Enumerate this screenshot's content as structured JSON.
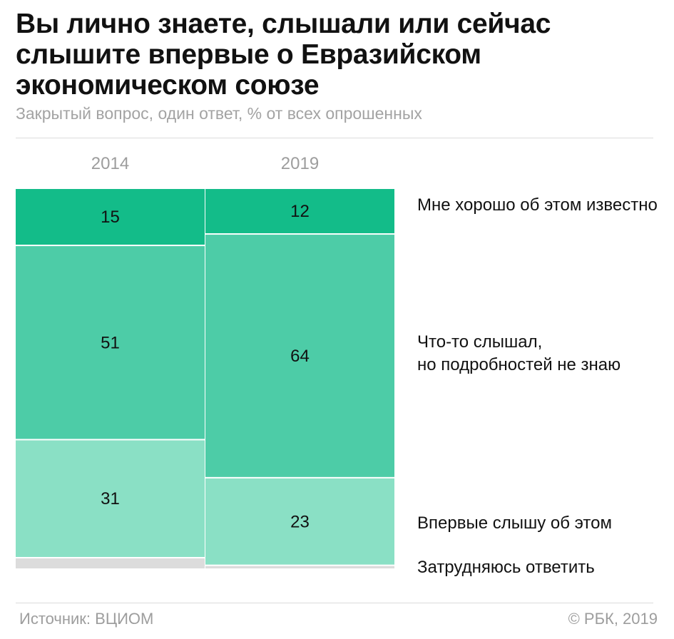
{
  "title": "Вы лично знаете, слышали или сейчас слышите впервые о Евразийском экономическом союзе",
  "subtitle": "Закрытый вопрос, один ответ, % от всех опрошенных",
  "source": "Источник: ВЦИОМ",
  "copyright": "© РБК, 2019",
  "colors": {
    "Мне хорошо об этом известно": "#13bc89",
    "Что-то слышал, но подробностей не знаю": "#4dcca7",
    "Впервые слышу об этом": "#8ae0c5",
    "Затрудняюсь ответить": "#dcdcdc"
  },
  "chart_data": {
    "type": "bar",
    "stacked": true,
    "categories": [
      "2014",
      "2019"
    ],
    "ylim": [
      0,
      100
    ],
    "series": [
      {
        "name": "Мне хорошо об этом известно",
        "values": [
          15,
          12
        ]
      },
      {
        "name": "Что-то слышал,\nно подробностей не знаю",
        "values": [
          51,
          64
        ]
      },
      {
        "name": "Впервые слышу об этом",
        "values": [
          31,
          23
        ]
      },
      {
        "name": "Затрудняюсь ответить",
        "values": [
          3,
          1
        ]
      }
    ],
    "value_labels_shown": [
      true,
      true,
      true,
      false
    ],
    "legend_position": "right"
  }
}
